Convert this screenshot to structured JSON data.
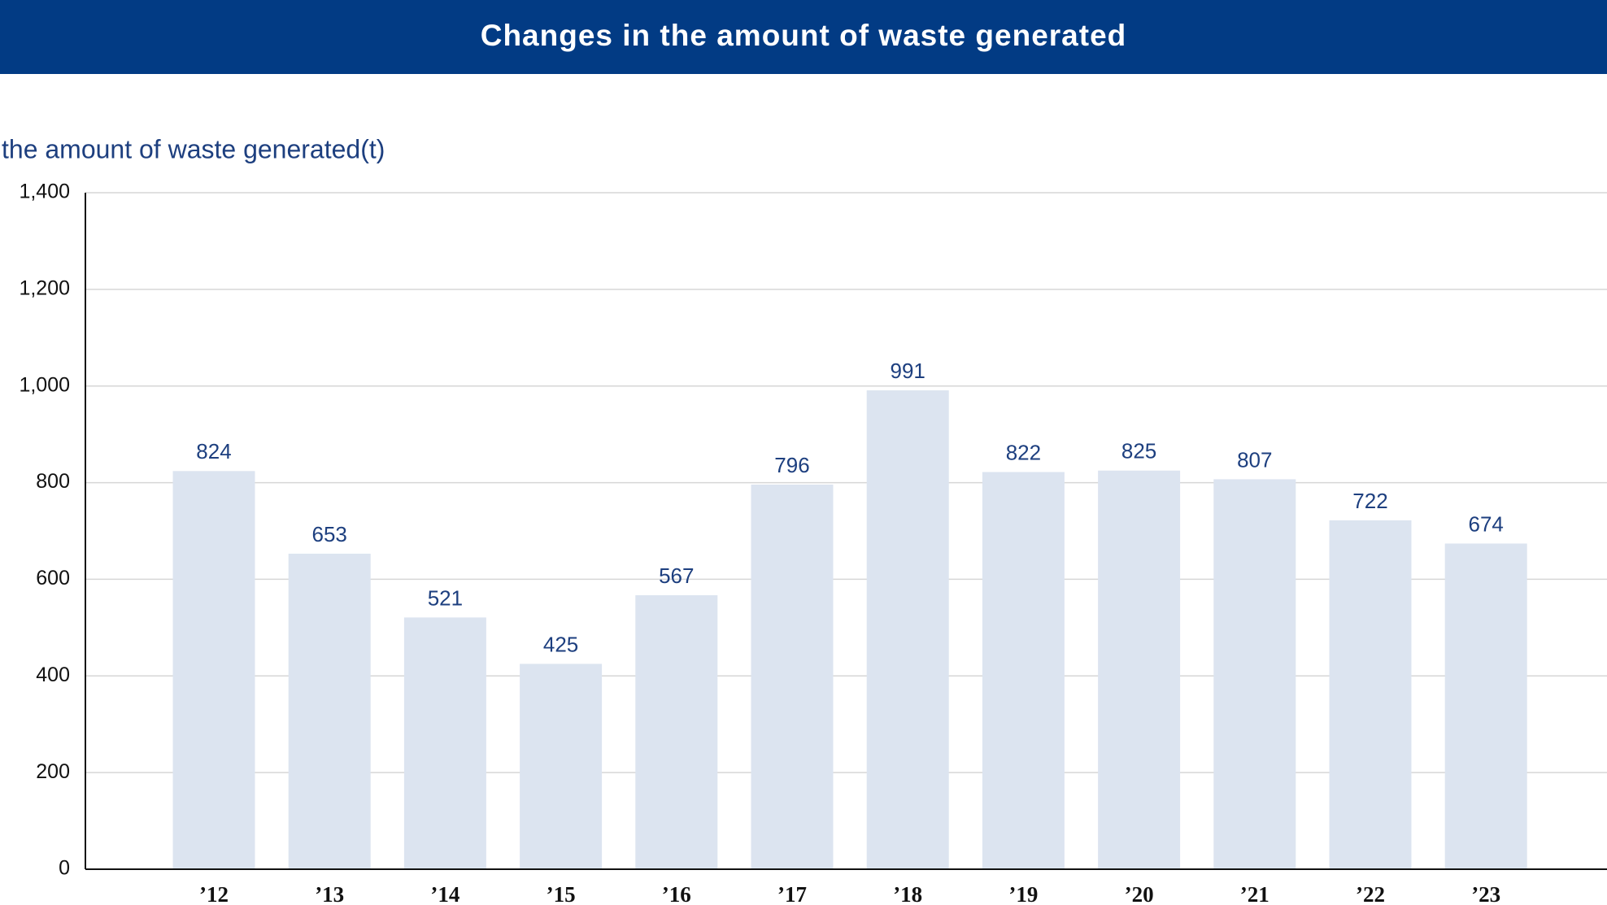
{
  "chart_data": {
    "type": "bar",
    "title": "Changes in the amount of waste generated",
    "y_label": "the amount of waste generated(t)",
    "categories": [
      "’12",
      "’13",
      "’14",
      "’15",
      "’16",
      "’17",
      "’18",
      "’19",
      "’20",
      "’21",
      "’22",
      "’23"
    ],
    "values": [
      824,
      653,
      521,
      425,
      567,
      796,
      991,
      822,
      825,
      807,
      722,
      674
    ],
    "color": "#dce4f0",
    "ylim": [
      0,
      1400
    ],
    "yticks": [
      0,
      200,
      400,
      600,
      800,
      {
        "value": 1000,
        "label": "1,000"
      },
      {
        "value": 1200,
        "label": "1,200"
      },
      {
        "value": 1400,
        "label": "1,400"
      }
    ],
    "grid": true
  }
}
